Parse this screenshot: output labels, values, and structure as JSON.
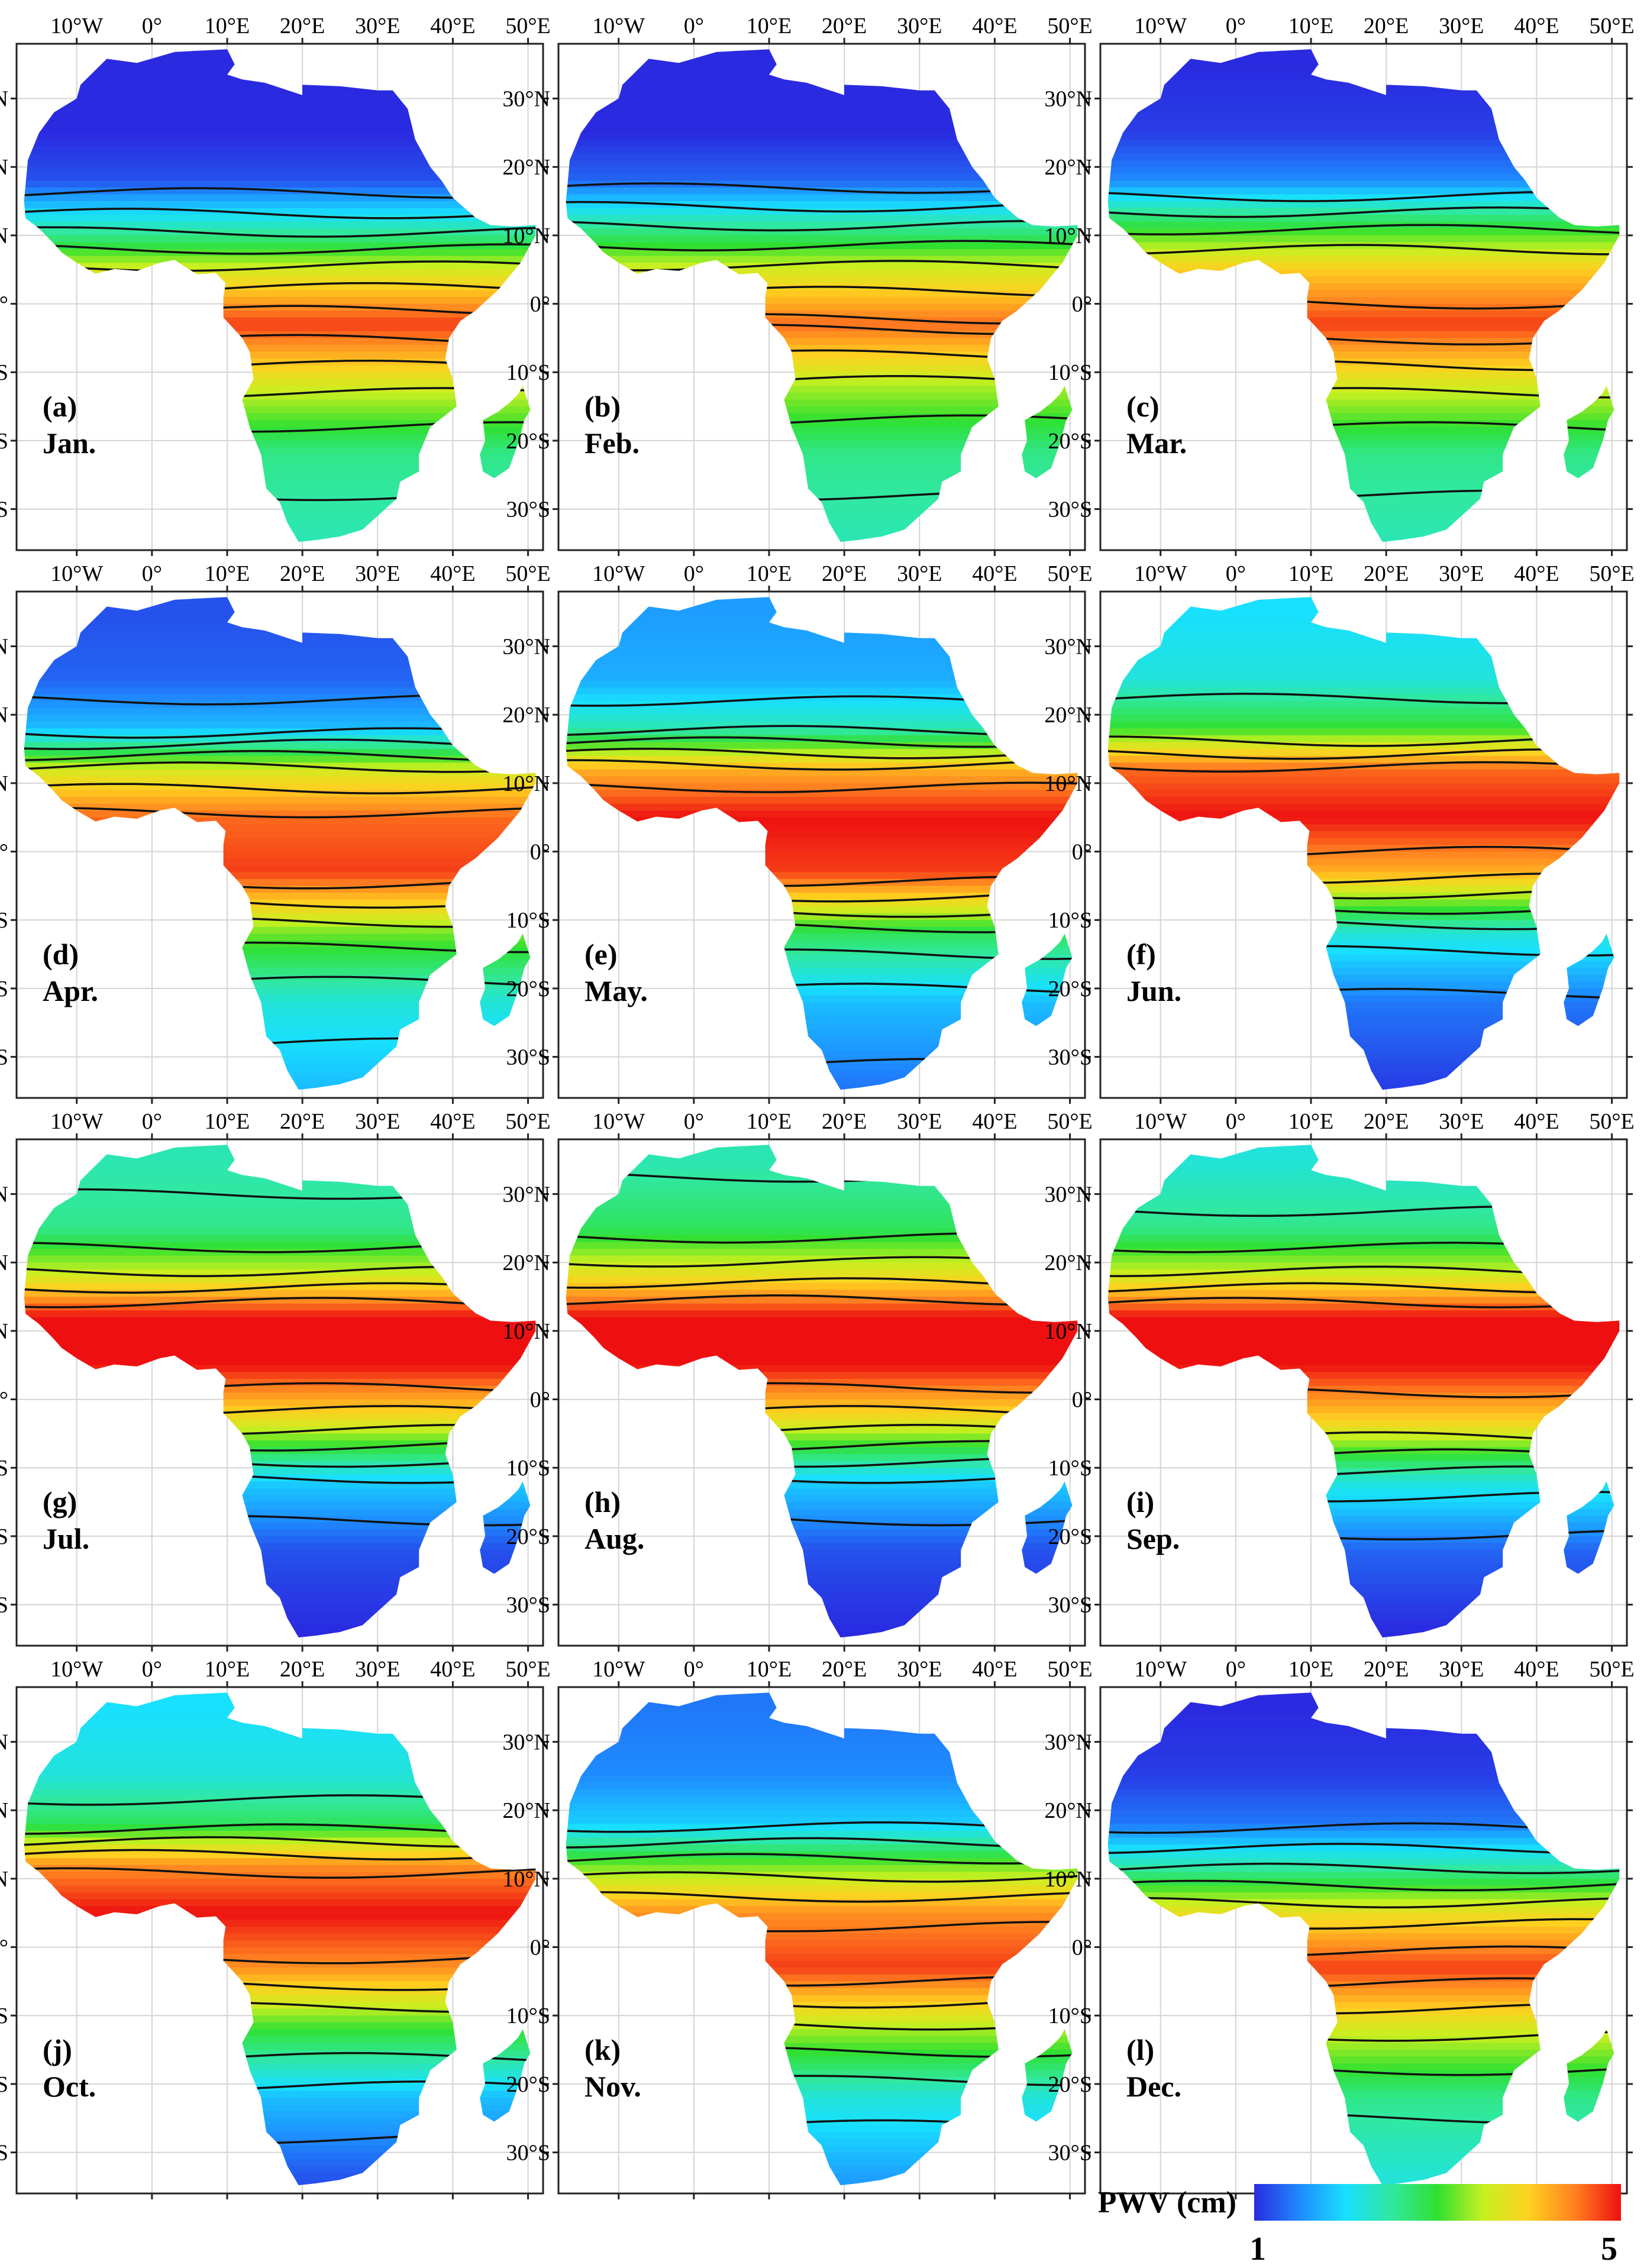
{
  "figure": {
    "lon_ticks": [
      {
        "value": -10,
        "label": "10°W"
      },
      {
        "value": 0,
        "label": "0°"
      },
      {
        "value": 10,
        "label": "10°E"
      },
      {
        "value": 20,
        "label": "20°E"
      },
      {
        "value": 30,
        "label": "30°E"
      },
      {
        "value": 40,
        "label": "40°E"
      },
      {
        "value": 50,
        "label": "50°E"
      }
    ],
    "lat_ticks": [
      {
        "value": 30,
        "label": "30°N"
      },
      {
        "value": 20,
        "label": "20°N"
      },
      {
        "value": 10,
        "label": "10°N"
      },
      {
        "value": 0,
        "label": "0°"
      },
      {
        "value": -10,
        "label": "10°S"
      },
      {
        "value": -20,
        "label": "20°S"
      },
      {
        "value": -30,
        "label": "30°S"
      }
    ],
    "map_extent": {
      "lon": [
        -18,
        52
      ],
      "lat": [
        -36,
        38
      ]
    },
    "panels": [
      {
        "letter": "(a)",
        "month": "Jan.",
        "profile": [
          1.0,
          1.0,
          1.2,
          2.2,
          3.6,
          4.8,
          3.6,
          2.6,
          2.4
        ]
      },
      {
        "letter": "(b)",
        "month": "Feb.",
        "profile": [
          1.0,
          1.0,
          1.3,
          2.4,
          3.6,
          4.6,
          3.4,
          2.6,
          2.4
        ]
      },
      {
        "letter": "(c)",
        "month": "Mar.",
        "profile": [
          1.0,
          1.1,
          1.5,
          2.8,
          4.0,
          4.8,
          3.6,
          2.6,
          2.4
        ]
      },
      {
        "letter": "(d)",
        "month": "Apr.",
        "profile": [
          1.2,
          1.3,
          1.8,
          3.6,
          4.6,
          4.8,
          3.2,
          2.2,
          1.8
        ]
      },
      {
        "letter": "(e)",
        "month": "May.",
        "profile": [
          1.6,
          1.7,
          2.4,
          4.2,
          5.0,
          4.8,
          2.8,
          1.8,
          1.4
        ]
      },
      {
        "letter": "(f)",
        "month": "Jun.",
        "profile": [
          2.0,
          2.2,
          3.0,
          4.6,
          5.0,
          4.2,
          2.2,
          1.4,
          1.1
        ]
      },
      {
        "letter": "(g)",
        "month": "Jul.",
        "profile": [
          2.4,
          2.6,
          3.6,
          5.0,
          5.0,
          3.8,
          1.9,
          1.2,
          1.0
        ]
      },
      {
        "letter": "(h)",
        "month": "Aug.",
        "profile": [
          2.4,
          2.8,
          3.8,
          5.0,
          5.0,
          3.8,
          1.9,
          1.2,
          1.0
        ]
      },
      {
        "letter": "(i)",
        "month": "Sep.",
        "profile": [
          2.2,
          2.6,
          3.6,
          5.0,
          5.0,
          4.0,
          2.2,
          1.3,
          1.0
        ]
      },
      {
        "letter": "(j)",
        "month": "Oct.",
        "profile": [
          2.0,
          2.2,
          2.8,
          4.4,
          5.0,
          4.4,
          3.0,
          1.8,
          1.2
        ]
      },
      {
        "letter": "(k)",
        "month": "Nov.",
        "profile": [
          1.4,
          1.5,
          1.9,
          3.2,
          4.4,
          4.8,
          3.4,
          2.2,
          1.6
        ]
      },
      {
        "letter": "(l)",
        "month": "Dec.",
        "profile": [
          1.0,
          1.1,
          1.4,
          2.4,
          3.8,
          4.8,
          3.6,
          2.6,
          2.2
        ]
      }
    ],
    "profile_latitudes": [
      35,
      25,
      18,
      12,
      5,
      -3,
      -12,
      -22,
      -34
    ],
    "contour_levels": [
      1,
      1.5,
      2,
      2.5,
      3,
      3.5,
      4,
      4.5,
      5,
      5.5,
      6
    ],
    "colorbar": {
      "title": "PWV (cm)",
      "min_label": "1",
      "max_label": "5",
      "min": 1,
      "max": 5,
      "colors": [
        "#2a2ae0",
        "#1e8cff",
        "#18e0ff",
        "#30e8a0",
        "#30e030",
        "#c8f020",
        "#ffd020",
        "#ff8020",
        "#ee1010"
      ]
    }
  }
}
